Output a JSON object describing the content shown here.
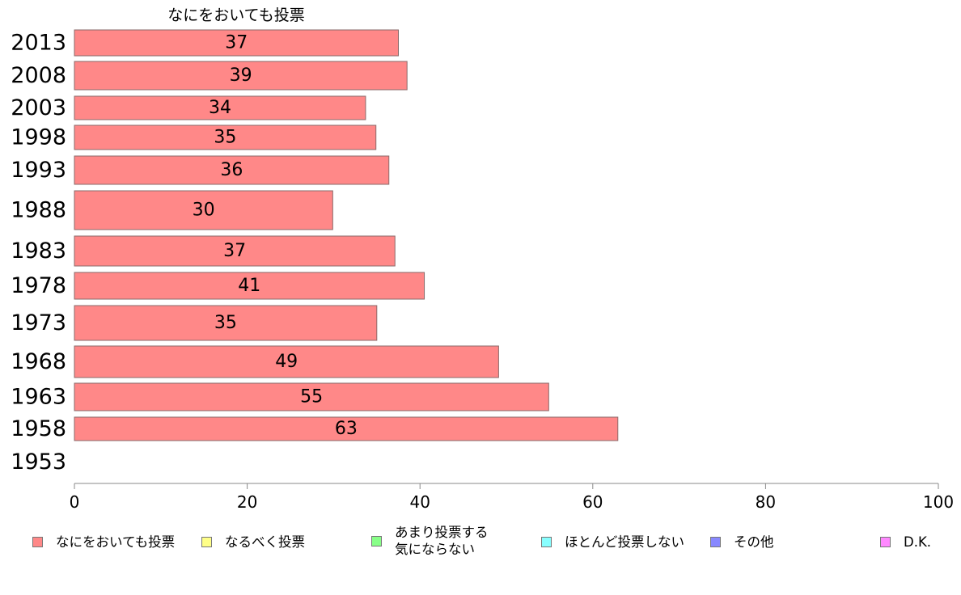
{
  "chart_data": {
    "type": "bar",
    "orientation": "horizontal",
    "series_title": "なにをおいても投票",
    "categories": [
      "2013",
      "2008",
      "2003",
      "1998",
      "1993",
      "1988",
      "1983",
      "1978",
      "1973",
      "1968",
      "1963",
      "1958",
      "1953"
    ],
    "series": [
      {
        "name": "なにをおいても投票",
        "color": "#ff8888",
        "values": [
          37,
          39,
          34,
          35,
          36,
          30,
          37,
          41,
          35,
          49,
          55,
          63,
          null
        ],
        "display_values": [
          37.5,
          38.5,
          33.7,
          34.9,
          36.4,
          29.9,
          37.1,
          40.5,
          35.0,
          49.1,
          54.9,
          62.9,
          null
        ]
      }
    ],
    "xlim": [
      0,
      100
    ],
    "x_ticks": [
      0,
      20,
      40,
      60,
      80,
      100
    ],
    "grid": false,
    "legend_position": "bottom",
    "legend": [
      {
        "label": "なにをおいても投票",
        "color": "#ff8888"
      },
      {
        "label": "なるべく投票",
        "color": "#ffff88"
      },
      {
        "label": "あまり投票する\n気にならない",
        "color": "#88ff88"
      },
      {
        "label": "ほとんど投票しない",
        "color": "#88ffff"
      },
      {
        "label": "その他",
        "color": "#8888ff"
      },
      {
        "label": "D.K.",
        "color": "#ff88ff"
      }
    ]
  }
}
